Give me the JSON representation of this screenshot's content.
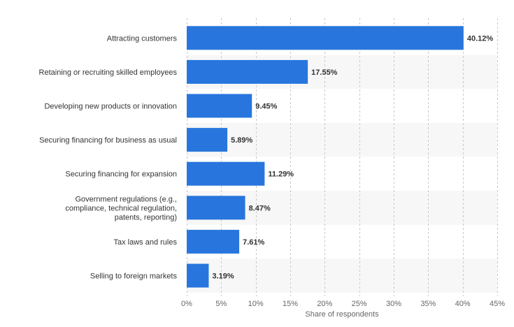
{
  "chart_data": {
    "type": "bar",
    "orientation": "horizontal",
    "categories": [
      [
        "Attracting customers"
      ],
      [
        "Retaining or recruiting skilled employees"
      ],
      [
        "Developing new products or innovation"
      ],
      [
        "Securing financing for business as usual"
      ],
      [
        "Securing financing for expansion"
      ],
      [
        "Government regulations (e.g.,",
        "compliance, technical regulation,",
        "patents, reporting)"
      ],
      [
        "Tax laws and rules"
      ],
      [
        "Selling to foreign markets"
      ]
    ],
    "values": [
      40.12,
      17.55,
      9.45,
      5.89,
      11.29,
      8.47,
      7.61,
      3.19
    ],
    "value_labels": [
      "40.12%",
      "17.55%",
      "9.45%",
      "5.89%",
      "11.29%",
      "8.47%",
      "7.61%",
      "3.19%"
    ],
    "xlabel": "Share of respondents",
    "ylabel": "",
    "title": "",
    "xlim": [
      0,
      45
    ],
    "xticks": [
      0,
      5,
      10,
      15,
      20,
      25,
      30,
      35,
      40,
      45
    ],
    "xtick_labels": [
      "0%",
      "5%",
      "10%",
      "15%",
      "20%",
      "25%",
      "30%",
      "35%",
      "40%",
      "45%"
    ],
    "grid": true,
    "colors": {
      "bar": "#2876dd",
      "band": "#f7f7f7",
      "grid": "#c8c8c8"
    }
  }
}
